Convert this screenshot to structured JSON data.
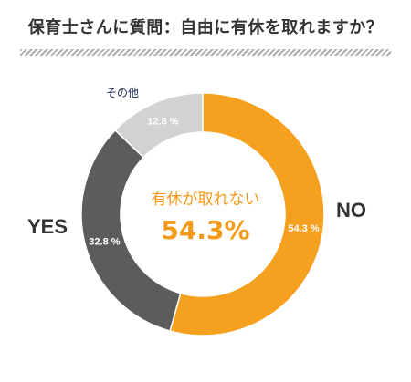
{
  "title": "保育士さんに質問：自由に有休を取れますか？",
  "center": {
    "label": "有休が取れない",
    "value": "54.3%"
  },
  "colors": {
    "no": "#f6a020",
    "yes": "#5c5c5c",
    "other": "#d2d2d2",
    "accent": "#f29a18",
    "text": "#333333"
  },
  "labels": {
    "no": "NO",
    "yes": "YES",
    "other": "その他"
  },
  "chart_data": {
    "type": "pie",
    "title": "保育士さんに質問：自由に有休を取れますか？",
    "categories": [
      "NO",
      "YES",
      "その他"
    ],
    "values": [
      54.3,
      32.8,
      12.8
    ],
    "data_labels": [
      "54.3 %",
      "32.8 %",
      "12.8 %"
    ],
    "donut": true,
    "start": "top, clockwise"
  }
}
